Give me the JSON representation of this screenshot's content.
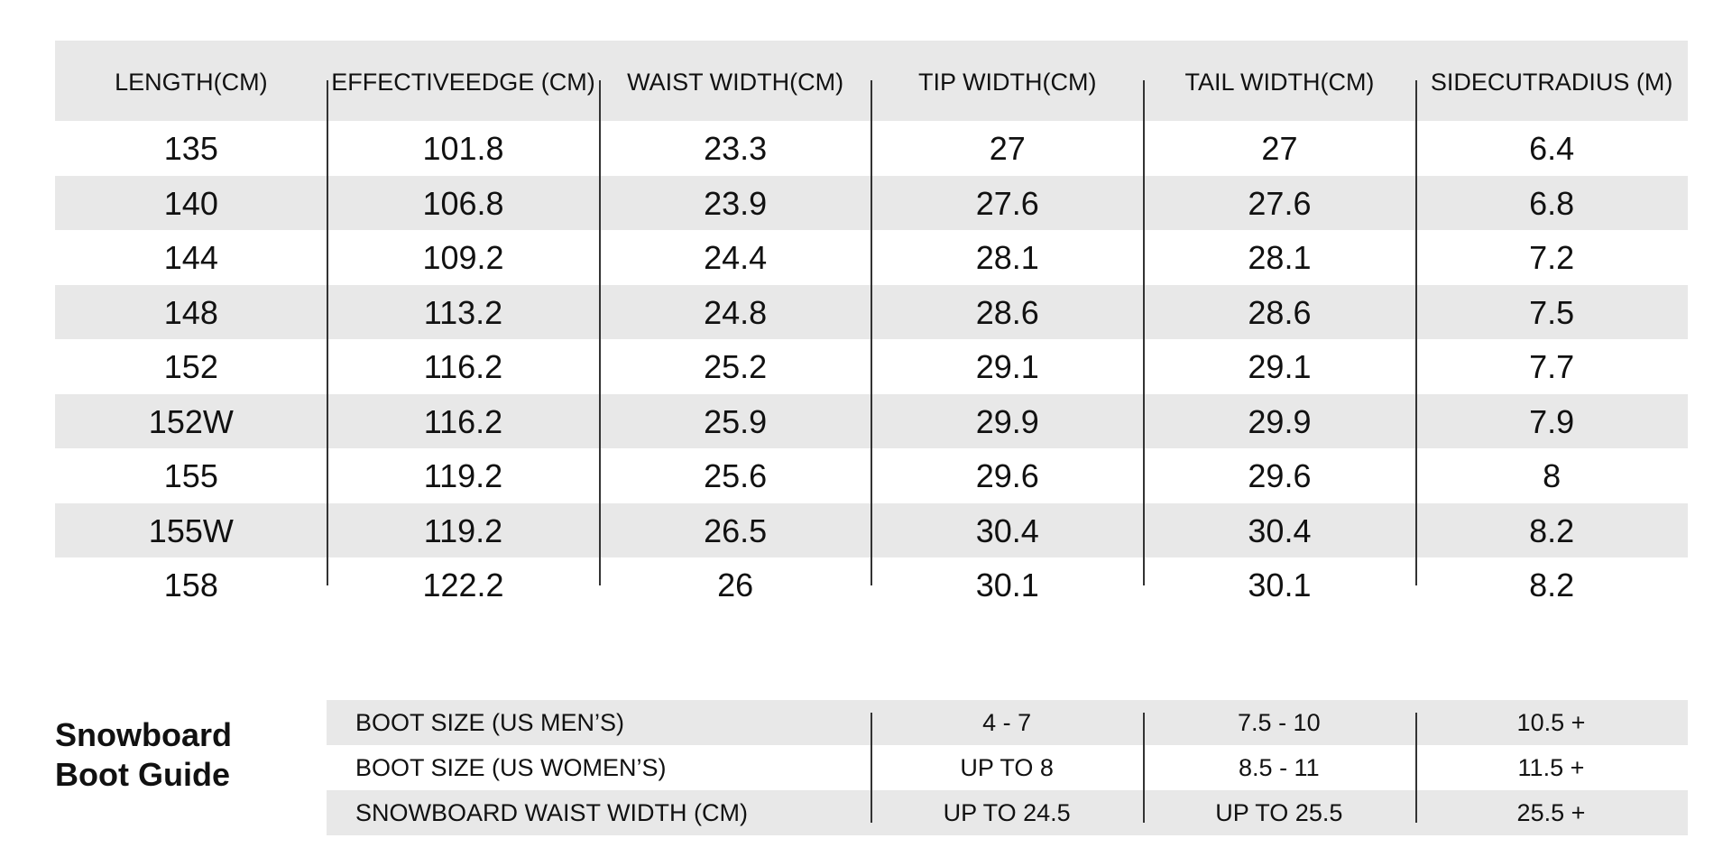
{
  "specs": {
    "headers": [
      [
        "LENGTH",
        "(CM)"
      ],
      [
        "EFFECTIVE",
        "EDGE (CM)"
      ],
      [
        "WAIST WIDTH",
        "(CM)"
      ],
      [
        "TIP WIDTH",
        "(CM)"
      ],
      [
        "TAIL WIDTH",
        "(CM)"
      ],
      [
        "SIDECUT",
        "RADIUS (M)"
      ]
    ],
    "rows": [
      [
        "135",
        "101.8",
        "23.3",
        "27",
        "27",
        "6.4"
      ],
      [
        "140",
        "106.8",
        "23.9",
        "27.6",
        "27.6",
        "6.8"
      ],
      [
        "144",
        "109.2",
        "24.4",
        "28.1",
        "28.1",
        "7.2"
      ],
      [
        "148",
        "113.2",
        "24.8",
        "28.6",
        "28.6",
        "7.5"
      ],
      [
        "152",
        "116.2",
        "25.2",
        "29.1",
        "29.1",
        "7.7"
      ],
      [
        "152W",
        "116.2",
        "25.9",
        "29.9",
        "29.9",
        "7.9"
      ],
      [
        "155",
        "119.2",
        "25.6",
        "29.6",
        "29.6",
        "8"
      ],
      [
        "155W",
        "119.2",
        "26.5",
        "30.4",
        "30.4",
        "8.2"
      ],
      [
        "158",
        "122.2",
        "26",
        "30.1",
        "30.1",
        "8.2"
      ]
    ]
  },
  "boot_guide": {
    "title_line1": "Snowboard",
    "title_line2": "Boot Guide",
    "rows": [
      {
        "label": "BOOT SIZE (US MEN’S)",
        "values": [
          "4 - 7",
          "7.5 - 10",
          "10.5 +"
        ]
      },
      {
        "label": "BOOT SIZE (US WOMEN’S)",
        "values": [
          "UP TO 8",
          "8.5 - 11",
          "11.5 +"
        ]
      },
      {
        "label": "SNOWBOARD WAIST WIDTH (CM)",
        "values": [
          "UP TO 24.5",
          "UP TO 25.5",
          "25.5 +"
        ]
      }
    ]
  },
  "colors": {
    "row_shade": "#e8e8e8",
    "text": "#111111",
    "divider": "#333333"
  }
}
